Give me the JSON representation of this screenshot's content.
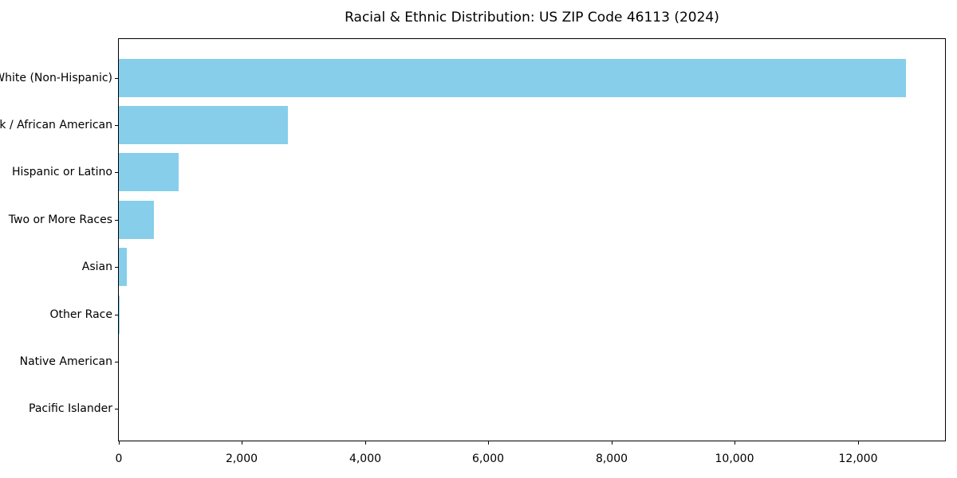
{
  "chart_data": {
    "type": "bar",
    "orientation": "horizontal",
    "title": "Racial & Ethnic Distribution: US ZIP Code 46113 (2024)",
    "categories": [
      "White (Non-Hispanic)",
      "Black / African American",
      "Hispanic or Latino",
      "Two or More Races",
      "Asian",
      "Other Race",
      "Native American",
      "Pacific Islander"
    ],
    "values": [
      12775,
      2740,
      970,
      575,
      130,
      18,
      0,
      0
    ],
    "xlabel": "",
    "ylabel": "",
    "xlim": [
      0,
      13414
    ],
    "x_ticks": [
      0,
      2000,
      4000,
      6000,
      8000,
      10000,
      12000
    ],
    "x_tick_labels": [
      "0",
      "2,000",
      "4,000",
      "6,000",
      "8,000",
      "10,000",
      "12,000"
    ],
    "bar_color": "#87CEEB",
    "background_color": "#ffffff",
    "spine_color": "#000000",
    "grid": false,
    "legend": false
  }
}
